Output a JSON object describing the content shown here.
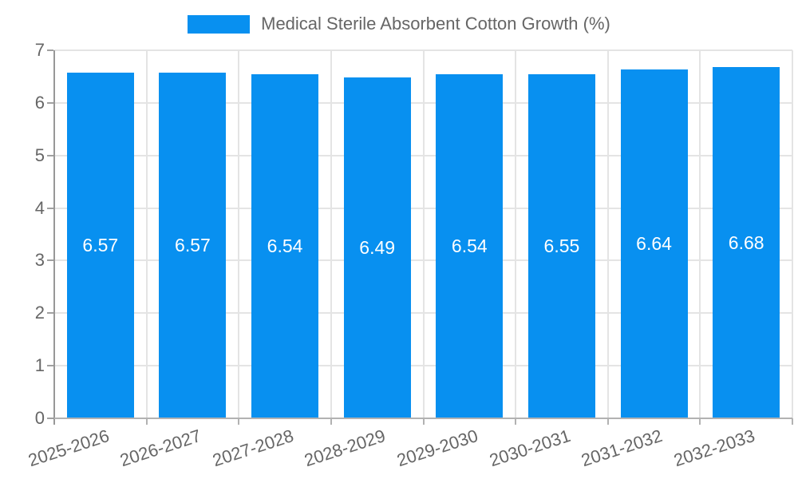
{
  "chart_data": {
    "type": "bar",
    "title": "Medical Sterile Absorbent Cotton Growth (%)",
    "categories": [
      "2025-2026",
      "2026-2027",
      "2027-2028",
      "2028-2029",
      "2029-2030",
      "2030-2031",
      "2031-2032",
      "2032-2033"
    ],
    "values": [
      6.57,
      6.57,
      6.54,
      6.49,
      6.54,
      6.55,
      6.64,
      6.68
    ],
    "value_labels": [
      "6.57",
      "6.57",
      "6.54",
      "6.49",
      "6.54",
      "6.55",
      "6.64",
      "6.68"
    ],
    "xlabel": "",
    "ylabel": "",
    "ylim": [
      0,
      7
    ],
    "yticks": [
      0,
      1,
      2,
      3,
      4,
      5,
      6,
      7
    ],
    "grid": true,
    "legend_position": "top",
    "bar_color": "#0890f0",
    "bar_label_color": "#ffffff"
  }
}
